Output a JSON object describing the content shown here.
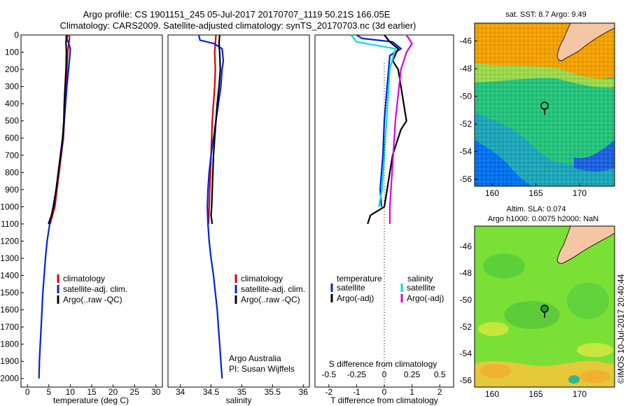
{
  "header": {
    "title_line1": "Argo profile: CS 1901151_245 05-Jul-2017 20170707_1119 50.21S 166.05E",
    "title_line2": "Climatology: CARS2009. Satellite-adjusted climatology: synTS_20170703.nc (3d earlier)"
  },
  "chart_data": [
    {
      "type": "line",
      "xlabel": "temperature (deg C)",
      "ylabel": "",
      "xlim": [
        -1.5,
        31.5
      ],
      "ylim": [
        2050,
        0
      ],
      "y_reversed": true,
      "x_ticks": [
        0,
        5,
        10,
        15,
        20,
        25,
        30
      ],
      "y_ticks": [
        0,
        100,
        200,
        300,
        400,
        500,
        600,
        700,
        800,
        900,
        1000,
        1100,
        1200,
        1300,
        1400,
        1500,
        1600,
        1700,
        1800,
        1900,
        2000
      ],
      "legend": [
        "climatology",
        "satellite-adj. clim.",
        "Argo(..raw -QC)"
      ],
      "legend_placement": "bottom-center",
      "series": [
        {
          "name": "climatology",
          "color": "#dd0000",
          "points": [
            [
              9.8,
              0
            ],
            [
              9.8,
              30
            ],
            [
              9.6,
              60
            ],
            [
              9.4,
              100
            ],
            [
              9.2,
              200
            ],
            [
              9.0,
              300
            ],
            [
              8.8,
              400
            ],
            [
              8.6,
              500
            ],
            [
              8.4,
              600
            ],
            [
              7.9,
              700
            ],
            [
              7.4,
              800
            ],
            [
              6.9,
              900
            ],
            [
              6.4,
              1000
            ],
            [
              5.3,
              1100
            ]
          ]
        },
        {
          "name": "satellite-adj. clim.",
          "color": "#0022dd",
          "points": [
            [
              9.4,
              0
            ],
            [
              9.2,
              20
            ],
            [
              9.6,
              45
            ],
            [
              10.0,
              80
            ],
            [
              9.9,
              120
            ],
            [
              9.6,
              200
            ],
            [
              9.2,
              300
            ],
            [
              8.9,
              400
            ],
            [
              8.6,
              500
            ],
            [
              8.3,
              600
            ],
            [
              7.8,
              700
            ],
            [
              7.2,
              800
            ],
            [
              6.7,
              900
            ],
            [
              6.0,
              1000
            ],
            [
              5.2,
              1100
            ],
            [
              4.6,
              1200
            ],
            [
              4.2,
              1300
            ],
            [
              3.9,
              1400
            ],
            [
              3.6,
              1500
            ],
            [
              3.4,
              1600
            ],
            [
              3.2,
              1700
            ],
            [
              3.0,
              1800
            ],
            [
              2.8,
              1900
            ],
            [
              2.7,
              2000
            ]
          ]
        },
        {
          "name": "Argo(..raw -QC)",
          "color": "#000000",
          "points": [
            [
              9.1,
              0
            ],
            [
              9.0,
              50
            ],
            [
              9.1,
              100
            ],
            [
              9.0,
              200
            ],
            [
              8.8,
              300
            ],
            [
              8.6,
              400
            ],
            [
              8.5,
              500
            ],
            [
              8.2,
              600
            ],
            [
              7.7,
              700
            ],
            [
              7.2,
              800
            ],
            [
              6.7,
              900
            ],
            [
              6.1,
              1000
            ],
            [
              5.6,
              1050
            ],
            [
              4.9,
              1100
            ]
          ]
        }
      ]
    },
    {
      "type": "line",
      "xlabel": "salinity",
      "ylabel": "",
      "xlim": [
        33.8,
        36.1
      ],
      "ylim": [
        2050,
        0
      ],
      "y_reversed": true,
      "x_ticks": [
        34,
        34.5,
        35,
        35.5,
        36
      ],
      "x_tick_labels": [
        "34",
        "34.5",
        "35",
        "35.5",
        "36"
      ],
      "legend": [
        "climatology",
        "satellite-adj. clim.",
        "Argo(..raw -QC)"
      ],
      "legend_placement": "bottom-right",
      "annotation_lines": [
        "Argo Australia",
        "PI: Susan Wijffels"
      ],
      "series": [
        {
          "name": "climatology",
          "color": "#dd0000",
          "points": [
            [
              34.58,
              0
            ],
            [
              34.57,
              50
            ],
            [
              34.56,
              100
            ],
            [
              34.57,
              200
            ],
            [
              34.56,
              300
            ],
            [
              34.54,
              400
            ],
            [
              34.52,
              500
            ],
            [
              34.51,
              600
            ],
            [
              34.5,
              700
            ],
            [
              34.49,
              800
            ],
            [
              34.48,
              900
            ],
            [
              34.47,
              1000
            ],
            [
              34.46,
              1100
            ]
          ]
        },
        {
          "name": "satellite-adj. clim.",
          "color": "#0022dd",
          "points": [
            [
              34.3,
              0
            ],
            [
              34.32,
              30
            ],
            [
              34.55,
              50
            ],
            [
              34.68,
              80
            ],
            [
              34.7,
              150
            ],
            [
              34.68,
              200
            ],
            [
              34.66,
              300
            ],
            [
              34.62,
              400
            ],
            [
              34.58,
              500
            ],
            [
              34.54,
              600
            ],
            [
              34.5,
              700
            ],
            [
              34.47,
              800
            ],
            [
              34.45,
              900
            ],
            [
              34.44,
              1000
            ],
            [
              34.45,
              1100
            ],
            [
              34.47,
              1200
            ],
            [
              34.5,
              1300
            ],
            [
              34.54,
              1400
            ],
            [
              34.57,
              1500
            ],
            [
              34.6,
              1600
            ],
            [
              34.62,
              1700
            ],
            [
              34.64,
              1800
            ],
            [
              34.66,
              1900
            ],
            [
              34.68,
              2000
            ]
          ]
        },
        {
          "name": "Argo(..raw -QC)",
          "color": "#000000",
          "points": [
            [
              34.64,
              0
            ],
            [
              34.63,
              50
            ],
            [
              34.64,
              100
            ],
            [
              34.65,
              200
            ],
            [
              34.63,
              300
            ],
            [
              34.6,
              400
            ],
            [
              34.58,
              500
            ],
            [
              34.56,
              600
            ],
            [
              34.54,
              700
            ],
            [
              34.53,
              800
            ],
            [
              34.52,
              900
            ],
            [
              34.51,
              1000
            ],
            [
              34.5,
              1050
            ],
            [
              34.52,
              1100
            ]
          ]
        }
      ]
    },
    {
      "type": "line",
      "xlabel": "T difference from climatology",
      "xlabel_top": "S difference from climatology",
      "ylabel": "",
      "xlim": [
        -2.5,
        2.5
      ],
      "ylim": [
        2050,
        0
      ],
      "y_reversed": true,
      "x_ticks": [
        -2,
        -1,
        0,
        1,
        2
      ],
      "x_tick_labels": [
        "-2",
        "-1",
        "0",
        "1",
        "2"
      ],
      "s_ticks": [
        "-0.5",
        "-0.25",
        "0",
        "0.25",
        "0.5"
      ],
      "legend_titles": [
        "temperature",
        "salinity"
      ],
      "legend": [
        "satellite",
        "Argo(-adj)",
        "satellite",
        "Argo(-adj)"
      ],
      "legend_placement": "bottom",
      "zero_line": "dotted",
      "series": [
        {
          "name": "satellite",
          "group": "temperature",
          "color": "#0022dd",
          "points": [
            [
              -1.0,
              0
            ],
            [
              -0.8,
              20
            ],
            [
              0.3,
              40
            ],
            [
              0.6,
              80
            ],
            [
              0.2,
              120
            ],
            [
              0.1,
              300
            ],
            [
              0.0,
              500
            ],
            [
              -0.05,
              700
            ],
            [
              -0.1,
              800
            ],
            [
              -0.15,
              900
            ],
            [
              -0.1,
              1000
            ]
          ]
        },
        {
          "name": "Argo(-adj)",
          "group": "temperature",
          "color": "#000000",
          "points": [
            [
              0.0,
              0
            ],
            [
              0.2,
              40
            ],
            [
              0.5,
              80
            ],
            [
              0.3,
              150
            ],
            [
              0.5,
              200
            ],
            [
              0.6,
              300
            ],
            [
              0.7,
              400
            ],
            [
              0.8,
              500
            ],
            [
              0.6,
              550
            ],
            [
              0.5,
              600
            ],
            [
              0.3,
              700
            ],
            [
              0.2,
              800
            ],
            [
              0.1,
              900
            ],
            [
              0.0,
              1000
            ],
            [
              -0.5,
              1050
            ],
            [
              -0.6,
              1100
            ]
          ]
        },
        {
          "name": "satellite",
          "group": "salinity",
          "color": "#00dddd",
          "points": [
            [
              -0.3,
              0
            ],
            [
              -0.25,
              40
            ],
            [
              0.1,
              80
            ],
            [
              0.05,
              200
            ],
            [
              0.02,
              500
            ],
            [
              0.0,
              700
            ],
            [
              -0.02,
              900
            ],
            [
              -0.05,
              1000
            ]
          ]
        },
        {
          "name": "Argo(-adj)",
          "group": "salinity",
          "color": "#dd00dd",
          "points": [
            [
              0.2,
              0
            ],
            [
              0.25,
              50
            ],
            [
              0.2,
              100
            ],
            [
              0.15,
              200
            ],
            [
              0.1,
              500
            ],
            [
              0.08,
              700
            ],
            [
              0.06,
              900
            ],
            [
              0.05,
              1000
            ],
            [
              0.05,
              1100
            ]
          ]
        }
      ]
    }
  ],
  "maps": [
    {
      "title": "sat. SST: 8.7  Argo: 9.49",
      "x_ticks": [
        "160",
        "165",
        "170"
      ],
      "y_ticks": [
        "-46",
        "-48",
        "-50",
        "-52",
        "-54",
        "-56"
      ],
      "lon_range": [
        158,
        174
      ],
      "lat_range": [
        -44.7,
        -56.5
      ],
      "float_position": [
        166.05,
        -50.21
      ]
    },
    {
      "title_line1": "Altim. SLA: 0.074",
      "title_line2": "Argo h1000: 0.0075  h2000: NaN",
      "x_ticks": [
        "160",
        "165",
        "170"
      ],
      "y_ticks": [
        "-46",
        "-48",
        "-50",
        "-52",
        "-54",
        "-56"
      ],
      "lon_range": [
        158,
        174
      ],
      "lat_range": [
        -44.5,
        -56.5
      ],
      "float_position": [
        166.05,
        -50.21
      ]
    }
  ],
  "colors": {
    "land": "#f4c6a4",
    "sst_warm": "#f2a000",
    "sst_mid": "#22c27a",
    "sst_cold": "#0070ee",
    "sla_base": "#7ae036",
    "sla_high": "#f0b030"
  },
  "footer": {
    "stamp": "©IMOS 10-Jul-2017 20:40:44"
  }
}
